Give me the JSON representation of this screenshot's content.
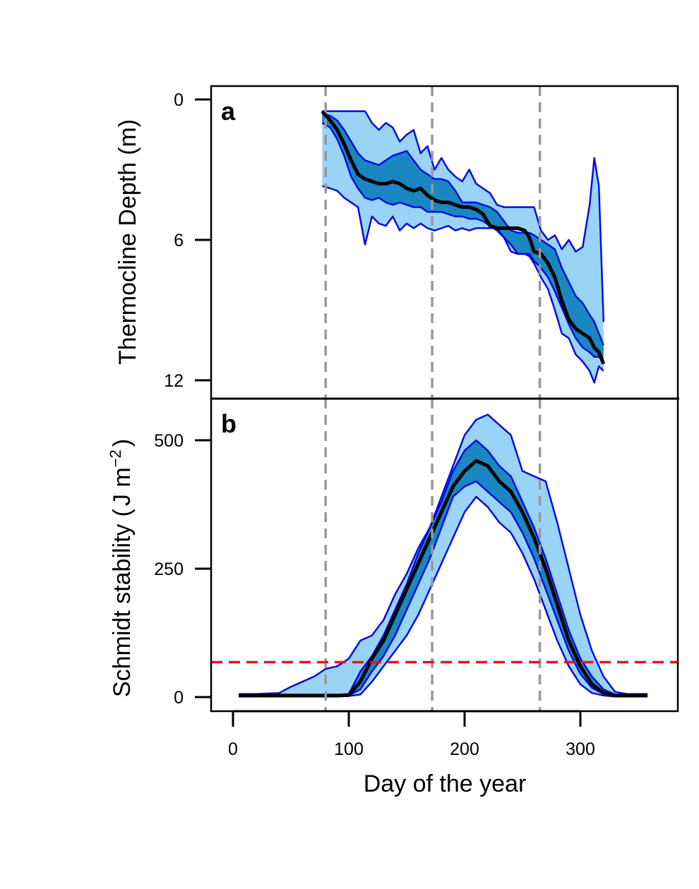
{
  "colors": {
    "outer_band": "#99d4f6",
    "inner_band": "#1a86c2",
    "band_edge": "#0b0bdf",
    "median": "#000000",
    "solstice_lines": "#999999",
    "threshold": "#e8141a"
  },
  "chart_data": [
    {
      "type": "line",
      "panel": "a",
      "ylabel": "Thermocline Depth (m)",
      "ylabel_text": "Thermocline Depth",
      "ylabel_unit": "(m)",
      "ylim": [
        12,
        0
      ],
      "y_reversed": true,
      "yticks": [
        0,
        6,
        12
      ],
      "ytick_labels": [
        "0",
        "6",
        "12"
      ],
      "vlines": [
        80,
        172,
        265
      ],
      "x": [
        77,
        84,
        90,
        96,
        102,
        108,
        114,
        120,
        126,
        132,
        138,
        144,
        150,
        156,
        162,
        168,
        174,
        180,
        186,
        192,
        198,
        204,
        210,
        216,
        222,
        228,
        234,
        240,
        246,
        252,
        256,
        260,
        266,
        272,
        278,
        284,
        290,
        296,
        302,
        308,
        312,
        316,
        320
      ],
      "series": [
        {
          "role": "outer-upper",
          "values": [
            0.5,
            0.5,
            0.5,
            0.5,
            0.5,
            0.5,
            0.5,
            1.0,
            1.3,
            1.0,
            1.2,
            1.8,
            1.5,
            1.3,
            2.3,
            2.0,
            3.0,
            2.5,
            3.0,
            3.3,
            3.5,
            3.0,
            3.6,
            3.8,
            4.0,
            4.5,
            4.6,
            4.6,
            4.6,
            4.6,
            4.6,
            4.6,
            5.6,
            6.0,
            5.8,
            6.4,
            6.0,
            6.5,
            6.3,
            4.5,
            2.5,
            3.7,
            9.5
          ]
        },
        {
          "role": "inner-upper",
          "values": [
            0.6,
            0.7,
            0.9,
            1.3,
            1.8,
            2.3,
            2.6,
            2.7,
            2.8,
            2.6,
            2.4,
            2.3,
            2.2,
            2.6,
            3.0,
            3.2,
            3.4,
            3.4,
            3.5,
            3.9,
            4.4,
            4.4,
            4.4,
            4.5,
            4.6,
            4.8,
            5.2,
            5.6,
            5.7,
            5.7,
            5.7,
            5.8,
            6.0,
            6.2,
            6.4,
            7.2,
            7.8,
            8.4,
            8.7,
            9.2,
            9.5,
            10.0,
            10.5
          ]
        },
        {
          "role": "median",
          "values": [
            0.5,
            0.9,
            1.3,
            1.9,
            2.6,
            3.2,
            3.4,
            3.5,
            3.6,
            3.6,
            3.5,
            3.6,
            3.8,
            3.9,
            3.8,
            4.1,
            4.3,
            4.4,
            4.4,
            4.5,
            4.6,
            4.6,
            4.7,
            4.9,
            5.4,
            5.5,
            5.5,
            5.5,
            5.5,
            5.6,
            5.9,
            6.5,
            6.6,
            7.0,
            7.6,
            8.6,
            9.4,
            9.8,
            10.0,
            10.2,
            10.6,
            10.8,
            11.3
          ]
        },
        {
          "role": "inner-lower",
          "values": [
            1.0,
            1.2,
            1.7,
            2.4,
            3.3,
            3.8,
            4.2,
            4.3,
            4.2,
            4.4,
            4.5,
            4.4,
            4.5,
            4.6,
            4.6,
            4.8,
            4.8,
            4.8,
            4.9,
            5.0,
            5.0,
            5.1,
            5.1,
            5.2,
            5.4,
            5.6,
            5.9,
            6.2,
            6.6,
            6.6,
            6.6,
            6.9,
            7.2,
            7.6,
            8.2,
            8.9,
            9.6,
            10.2,
            10.6,
            10.8,
            11.0,
            11.0,
            11.2
          ]
        },
        {
          "role": "outer-lower",
          "values": [
            3.7,
            3.8,
            3.9,
            4.2,
            4.4,
            4.6,
            6.2,
            5.0,
            5.3,
            5.4,
            5.0,
            5.6,
            5.3,
            5.5,
            5.3,
            5.5,
            5.6,
            5.5,
            5.4,
            5.6,
            5.5,
            5.6,
            5.5,
            5.5,
            5.5,
            5.5,
            5.9,
            6.5,
            6.6,
            6.6,
            6.7,
            7.0,
            7.6,
            8.1,
            9.0,
            10.0,
            10.2,
            10.9,
            11.2,
            11.6,
            12.1,
            11.4,
            11.6
          ]
        }
      ]
    },
    {
      "type": "line",
      "panel": "b",
      "ylabel": "Schmidt stability (J m⁻²)",
      "ylabel_text": "Schmidt stability",
      "ylabel_unit_open": "(",
      "ylabel_unit_main": "J m",
      "ylabel_unit_exp": "−2",
      "ylabel_unit_close": ")",
      "ylim": [
        -30,
        560
      ],
      "yticks": [
        0,
        250,
        500
      ],
      "ytick_labels": [
        "0",
        "250",
        "500"
      ],
      "xlabel": "Day of the year",
      "xlim": [
        -20,
        380
      ],
      "xticks": [
        0,
        100,
        200,
        300
      ],
      "xtick_labels": [
        "0",
        "100",
        "200",
        "300"
      ],
      "hline": 68,
      "vlines": [
        80,
        172,
        265
      ],
      "x": [
        5,
        20,
        40,
        50,
        60,
        70,
        80,
        90,
        100,
        110,
        120,
        130,
        140,
        150,
        160,
        170,
        180,
        190,
        200,
        210,
        220,
        230,
        240,
        250,
        260,
        270,
        280,
        290,
        300,
        310,
        320,
        330,
        340,
        350,
        358
      ],
      "series": [
        {
          "role": "outer-upper",
          "values": [
            6,
            6,
            8,
            20,
            30,
            40,
            55,
            60,
            75,
            110,
            120,
            150,
            200,
            240,
            290,
            330,
            390,
            450,
            510,
            540,
            550,
            530,
            510,
            440,
            430,
            420,
            340,
            250,
            160,
            90,
            40,
            10,
            6,
            6,
            6
          ]
        },
        {
          "role": "inner-upper",
          "values": [
            3,
            3,
            3,
            3,
            3,
            3,
            3,
            4,
            6,
            50,
            80,
            120,
            170,
            220,
            280,
            330,
            380,
            440,
            480,
            500,
            480,
            450,
            430,
            380,
            330,
            270,
            200,
            130,
            75,
            40,
            15,
            5,
            3,
            3,
            3
          ]
        },
        {
          "role": "median",
          "values": [
            3,
            3,
            3,
            3,
            3,
            3,
            3,
            3,
            4,
            30,
            75,
            110,
            160,
            210,
            260,
            310,
            360,
            410,
            440,
            460,
            450,
            420,
            400,
            360,
            310,
            250,
            180,
            110,
            60,
            25,
            8,
            3,
            3,
            3,
            3
          ]
        },
        {
          "role": "inner-lower",
          "values": [
            2,
            2,
            2,
            2,
            2,
            2,
            2,
            2,
            3,
            15,
            50,
            80,
            120,
            170,
            220,
            270,
            330,
            390,
            410,
            420,
            400,
            380,
            360,
            320,
            270,
            210,
            150,
            90,
            45,
            18,
            6,
            2,
            2,
            2,
            2
          ]
        },
        {
          "role": "outer-lower",
          "values": [
            1,
            1,
            1,
            1,
            1,
            1,
            1,
            1,
            2,
            5,
            30,
            60,
            90,
            120,
            160,
            210,
            260,
            310,
            360,
            390,
            370,
            340,
            320,
            280,
            230,
            170,
            110,
            60,
            25,
            8,
            3,
            1,
            1,
            1,
            1
          ]
        }
      ]
    }
  ]
}
